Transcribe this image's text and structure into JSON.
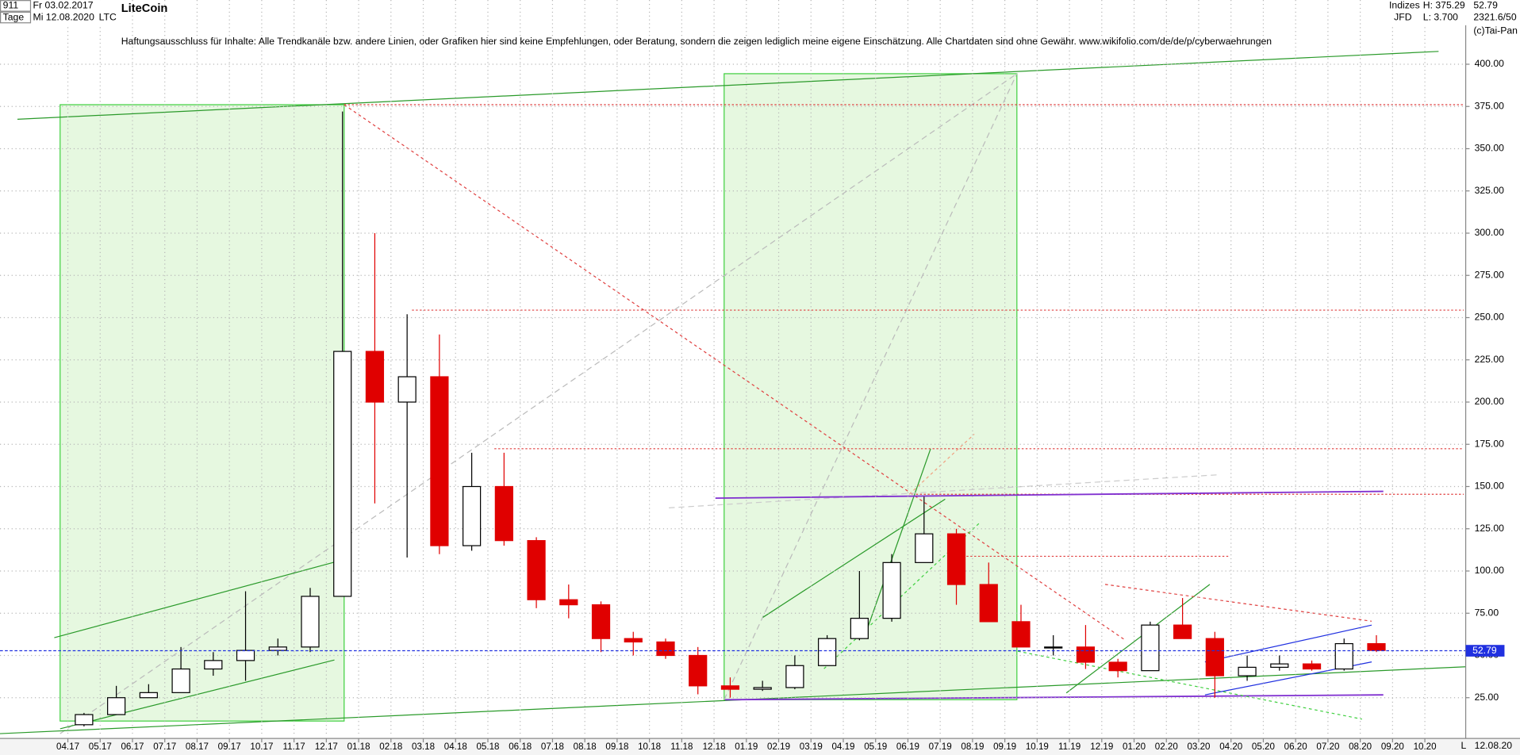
{
  "header": {
    "symbol_id": "911",
    "date_from": "Fr 03.02.2017",
    "period": "Tage",
    "date_to": "Mi 12.08.2020",
    "ticker": "LTC",
    "name": "LiteCoin",
    "group": "Indizes",
    "source": "JFD",
    "high": "H: 375.29",
    "low": "L: 3.700",
    "last": "52.79",
    "info": "2321.6/50",
    "copyright": "(c)Tai-Pan",
    "disclaimer": "Haftungsausschluss für Inhalte: Alle Trendkanäle bzw. andere Linien, oder Grafiken hier sind keine Empfehlungen, oder Beratung, sondern die zeigen lediglich meine eigene Einschätzung. Alle Chartdaten sind ohne Gewähr.  www.wikifolio.com/de/de/p/cyberwaehrungen",
    "end_date": "12.08.20",
    "scale_mode": "L"
  },
  "chart_data": {
    "type": "candlestick",
    "categories": [
      "04.17",
      "05.17",
      "06.17",
      "07.17",
      "08.17",
      "09.17",
      "10.17",
      "11.17",
      "12.17",
      "01.18",
      "02.18",
      "03.18",
      "04.18",
      "05.18",
      "06.18",
      "07.18",
      "08.18",
      "09.18",
      "10.18",
      "11.18",
      "12.18",
      "01.19",
      "02.19",
      "03.19",
      "04.19",
      "05.19",
      "06.19",
      "07.19",
      "08.19",
      "09.19",
      "10.19",
      "11.19",
      "12.19",
      "01.20",
      "02.20",
      "03.20",
      "04.20",
      "05.20",
      "06.20",
      "07.20",
      "08.20",
      "09.20",
      "10.20"
    ],
    "open": [
      9,
      15,
      25,
      28,
      42,
      47,
      53,
      55,
      85,
      230,
      200,
      215,
      115,
      150,
      118,
      83,
      80,
      60,
      58,
      50,
      32,
      30,
      31,
      44,
      60,
      72,
      105,
      122,
      92,
      70,
      55,
      55,
      46,
      41,
      68,
      60,
      38,
      43,
      45,
      42,
      57,
      null,
      null
    ],
    "high": [
      16,
      32,
      33,
      55,
      52,
      88,
      60,
      90,
      372,
      300,
      252,
      240,
      170,
      170,
      120,
      92,
      82,
      64,
      60,
      55,
      37,
      35,
      50,
      62,
      100,
      110,
      144,
      125,
      105,
      80,
      62,
      68,
      48,
      70,
      84,
      64,
      50,
      50,
      47,
      60,
      62,
      null,
      null
    ],
    "low": [
      8,
      15,
      25,
      28,
      38,
      35,
      50,
      52,
      85,
      140,
      108,
      110,
      112,
      115,
      78,
      72,
      52,
      50,
      48,
      27,
      25,
      29,
      30,
      44,
      59,
      70,
      105,
      80,
      70,
      55,
      50,
      42,
      37,
      41,
      62,
      25,
      35,
      41,
      41,
      41,
      52,
      null,
      null
    ],
    "close": [
      15,
      25,
      28,
      42,
      47,
      53,
      55,
      85,
      230,
      200,
      215,
      115,
      150,
      118,
      83,
      80,
      60,
      58,
      50,
      32,
      30,
      31,
      44,
      60,
      72,
      105,
      122,
      92,
      70,
      55,
      55,
      46,
      41,
      68,
      60,
      38,
      43,
      45,
      42,
      57,
      53,
      null,
      null
    ],
    "up_color": "#000000",
    "down_color": "#e00000",
    "last_price": {
      "value": 52.79,
      "label": "52.79"
    },
    "ylim": [
      2,
      438
    ],
    "yticks": [
      {
        "value": 25,
        "label": "25.00"
      },
      {
        "value": 50,
        "label": "50.00"
      },
      {
        "value": 75,
        "label": "75.00"
      },
      {
        "value": 100,
        "label": "100.00"
      },
      {
        "value": 125,
        "label": "125.00"
      },
      {
        "value": 150,
        "label": "150.00"
      },
      {
        "value": 175,
        "label": "175.00"
      },
      {
        "value": 200,
        "label": "200.00"
      },
      {
        "value": 225,
        "label": "225.00"
      },
      {
        "value": 250,
        "label": "250.00"
      },
      {
        "value": 275,
        "label": "275.00"
      },
      {
        "value": 300,
        "label": "300.00"
      },
      {
        "value": 325,
        "label": "325.00"
      },
      {
        "value": 350,
        "label": "350.00"
      },
      {
        "value": 375,
        "label": "375.00"
      },
      {
        "value": 400,
        "label": "400.00"
      }
    ],
    "grid": true
  }
}
